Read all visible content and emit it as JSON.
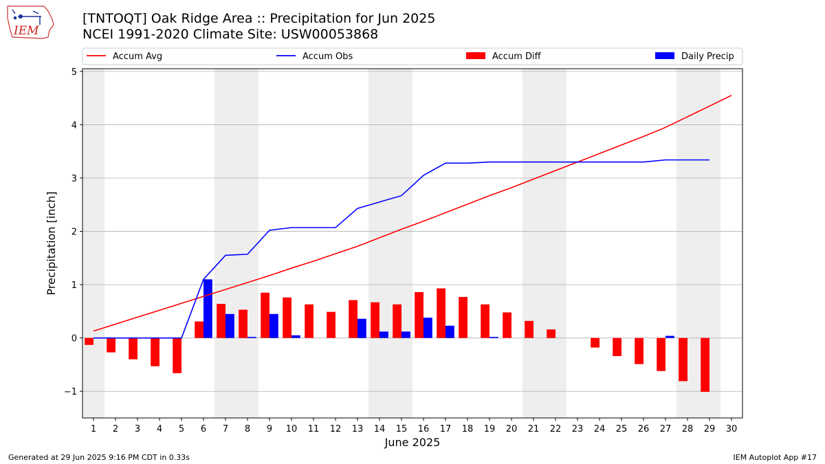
{
  "header": {
    "title_line1": "[TNTOQT] Oak Ridge Area :: Precipitation for Jun 2025",
    "title_line2": "NCEI 1991-2020 Climate Site: USW00053868"
  },
  "logo": {
    "text": "IEM",
    "icon": "iem-iowa-logo"
  },
  "footer": {
    "generated": "Generated at 29 Jun 2025 9:16 PM CDT in 0.33s",
    "app": "IEM Autoplot App #17"
  },
  "colors": {
    "avg": "#ff0000",
    "obs": "#0000ff",
    "diff": "#ff0000",
    "daily": "#0000ff",
    "weekend": "#eeeeee",
    "grid": "#b0b0b0"
  },
  "chart_data": {
    "type": "bar",
    "xlabel": "June 2025",
    "ylabel": "Precipitation [inch]",
    "xlim": [
      0.5,
      30.5
    ],
    "ylim": [
      -1.5,
      5.05
    ],
    "yticks": [
      -1,
      0,
      1,
      2,
      3,
      4,
      5
    ],
    "ytick_labels": [
      "−1",
      "0",
      "1",
      "2",
      "3",
      "4",
      "5"
    ],
    "xticks": [
      1,
      2,
      3,
      4,
      5,
      6,
      7,
      8,
      9,
      10,
      11,
      12,
      13,
      14,
      15,
      16,
      17,
      18,
      19,
      20,
      21,
      22,
      23,
      24,
      25,
      26,
      27,
      28,
      29,
      30
    ],
    "grid": "y",
    "legend_position": "top",
    "weekend_days": [
      1,
      7,
      8,
      14,
      15,
      21,
      22,
      28,
      29
    ],
    "series": [
      {
        "name": "Accum Avg",
        "kind": "line",
        "days": [
          1,
          2,
          3,
          4,
          5,
          6,
          7,
          8,
          9,
          10,
          11,
          12,
          13,
          14,
          15,
          16,
          17,
          18,
          19,
          20,
          21,
          22,
          23,
          24,
          25,
          26,
          27,
          28,
          29,
          30
        ],
        "values": [
          0.13,
          0.26,
          0.39,
          0.52,
          0.65,
          0.78,
          0.91,
          1.04,
          1.17,
          1.31,
          1.44,
          1.58,
          1.72,
          1.88,
          2.04,
          2.19,
          2.35,
          2.51,
          2.67,
          2.82,
          2.98,
          3.14,
          3.3,
          3.46,
          3.62,
          3.78,
          3.95,
          4.15,
          4.35,
          4.55
        ]
      },
      {
        "name": "Accum Obs",
        "kind": "line",
        "days": [
          1,
          2,
          3,
          4,
          5,
          6,
          7,
          8,
          9,
          10,
          11,
          12,
          13,
          14,
          15,
          16,
          17,
          18,
          19,
          20,
          21,
          22,
          23,
          24,
          25,
          26,
          27,
          28,
          29
        ],
        "values": [
          0.0,
          0.0,
          0.0,
          0.0,
          0.0,
          1.1,
          1.55,
          1.57,
          2.02,
          2.07,
          2.07,
          2.07,
          2.43,
          2.55,
          2.67,
          3.05,
          3.28,
          3.28,
          3.3,
          3.3,
          3.3,
          3.3,
          3.3,
          3.3,
          3.3,
          3.3,
          3.34,
          3.34,
          3.34
        ]
      },
      {
        "name": "Accum Diff",
        "kind": "bar",
        "days": [
          1,
          2,
          3,
          4,
          5,
          6,
          7,
          8,
          9,
          10,
          11,
          12,
          13,
          14,
          15,
          16,
          17,
          18,
          19,
          20,
          21,
          22,
          23,
          24,
          25,
          26,
          27,
          28,
          29
        ],
        "values": [
          -0.13,
          -0.27,
          -0.4,
          -0.53,
          -0.66,
          0.31,
          0.64,
          0.53,
          0.85,
          0.76,
          0.63,
          0.49,
          0.71,
          0.67,
          0.63,
          0.86,
          0.93,
          0.77,
          0.63,
          0.48,
          0.32,
          0.16,
          0.0,
          -0.18,
          -0.34,
          -0.49,
          -0.62,
          -0.81,
          -1.01
        ]
      },
      {
        "name": "Daily Precip",
        "kind": "bar",
        "days": [
          1,
          2,
          3,
          4,
          5,
          6,
          7,
          8,
          9,
          10,
          11,
          12,
          13,
          14,
          15,
          16,
          17,
          18,
          19,
          20,
          21,
          22,
          23,
          24,
          25,
          26,
          27,
          28,
          29
        ],
        "values": [
          0,
          0,
          0,
          0,
          0,
          1.1,
          0.45,
          0.02,
          0.45,
          0.05,
          0,
          0,
          0.36,
          0.12,
          0.12,
          0.38,
          0.23,
          0,
          0.02,
          0,
          0,
          0,
          0,
          0,
          0,
          0,
          0.04,
          0,
          0
        ]
      }
    ]
  }
}
